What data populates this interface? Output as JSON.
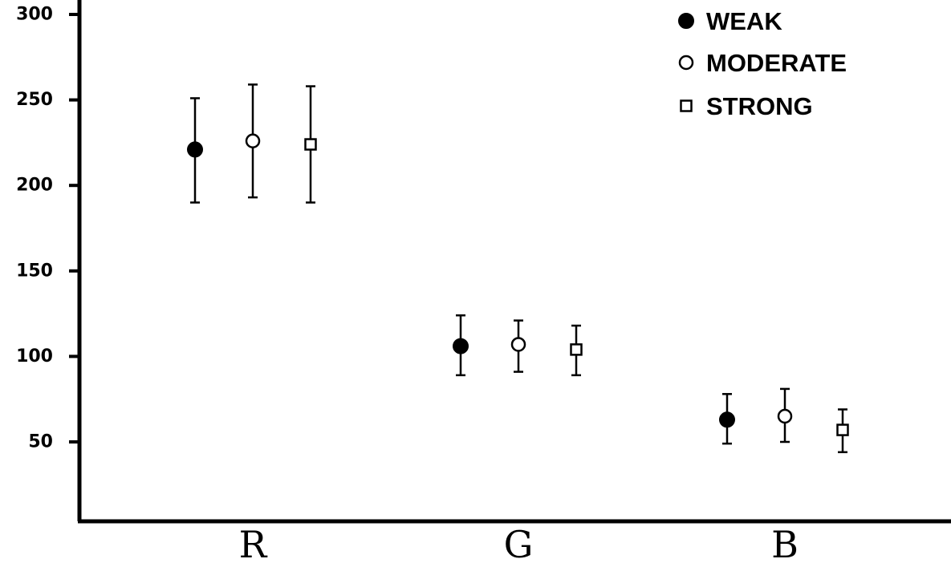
{
  "chart_data": {
    "type": "scatter",
    "categories": [
      "R",
      "G",
      "B"
    ],
    "ylim": [
      0,
      305
    ],
    "yticks": [
      50,
      100,
      150,
      200,
      250,
      300
    ],
    "ytick_labels": [
      "50",
      "100",
      "150",
      "200",
      "250",
      "300"
    ],
    "legend_position": "top-right",
    "grid": false,
    "series": [
      {
        "name": "WEAK",
        "marker": "filled-circle",
        "values": [
          221,
          106,
          63
        ],
        "err_low": [
          190,
          89,
          49
        ],
        "err_high": [
          251,
          124,
          78
        ]
      },
      {
        "name": "MODERATE",
        "marker": "open-circle",
        "values": [
          226,
          107,
          65
        ],
        "err_low": [
          193,
          91,
          50
        ],
        "err_high": [
          259,
          121,
          81
        ]
      },
      {
        "name": "STRONG",
        "marker": "open-square",
        "values": [
          224,
          104,
          57
        ],
        "err_low": [
          190,
          89,
          44
        ],
        "err_high": [
          258,
          118,
          69
        ]
      }
    ]
  }
}
